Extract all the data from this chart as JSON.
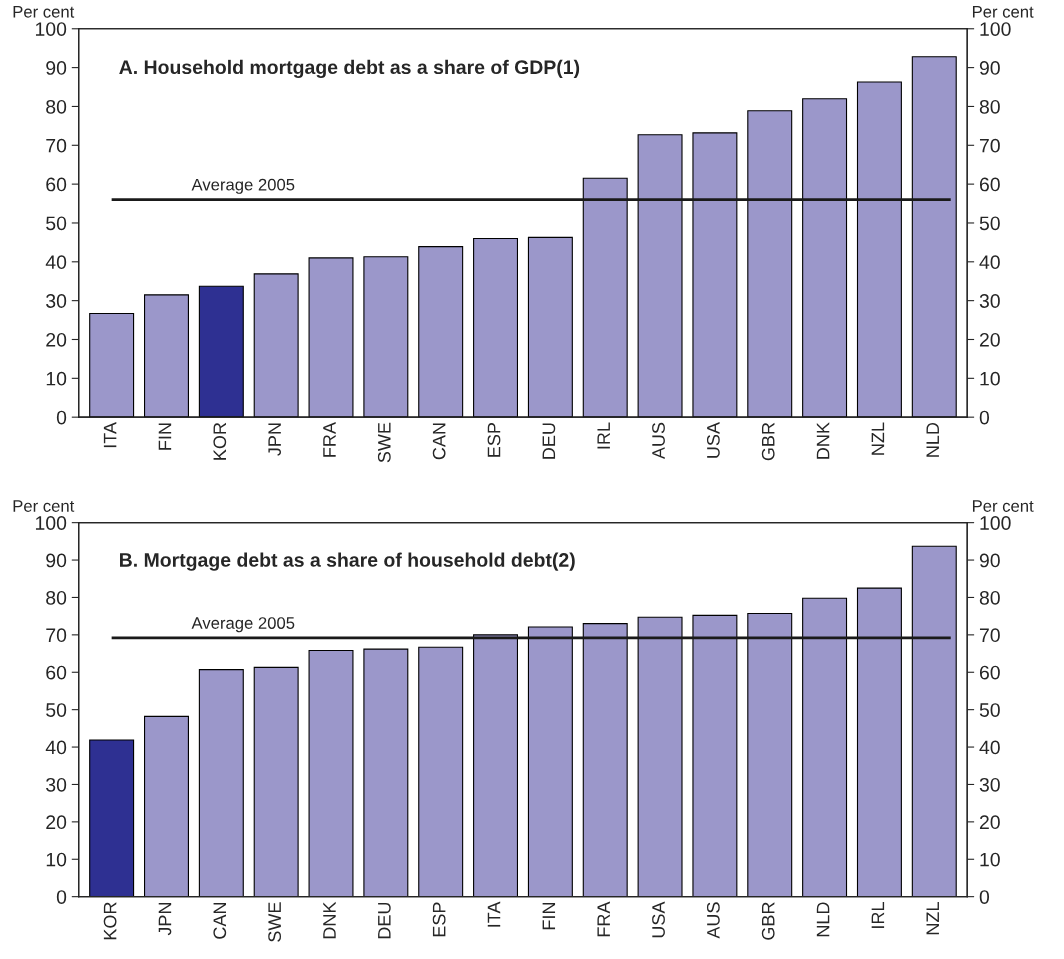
{
  "chart_data": [
    {
      "type": "bar",
      "title": "A. Household mortgage debt as a share of GDP(1)",
      "ylabel": "Per cent",
      "y2label": "Per cent",
      "categories": [
        "ITA",
        "FIN",
        "KOR",
        "JPN",
        "FRA",
        "SWE",
        "CAN",
        "ESP",
        "DEU",
        "IRL",
        "AUS",
        "USA",
        "GBR",
        "DNK",
        "NZL",
        "NLD"
      ],
      "values": [
        26.7,
        31.5,
        33.7,
        36.9,
        41.0,
        41.3,
        43.9,
        46.0,
        46.3,
        61.5,
        72.7,
        73.2,
        78.9,
        82.0,
        86.3,
        92.8
      ],
      "colors": [
        "#9b97ca",
        "#9b97ca",
        "#2e3092",
        "#9b97ca",
        "#9b97ca",
        "#9b97ca",
        "#9b97ca",
        "#9b97ca",
        "#9b97ca",
        "#9b97ca",
        "#9b97ca",
        "#9b97ca",
        "#9b97ca",
        "#9b97ca",
        "#9b97ca",
        "#9b97ca"
      ],
      "ylim": [
        0,
        100
      ],
      "yticks": [
        0,
        10,
        20,
        30,
        40,
        50,
        60,
        70,
        80,
        90,
        100
      ],
      "y2lim": [
        0,
        100
      ],
      "y2ticks": [
        0,
        10,
        20,
        30,
        40,
        50,
        60,
        70,
        80,
        90,
        100
      ],
      "ref_lines": [
        {
          "axis": "y",
          "value": 56,
          "label": "Average 2005",
          "color": "#1a1a1a"
        }
      ],
      "grid": false,
      "legend": false
    },
    {
      "type": "bar",
      "title": "B. Mortgage debt as a share of household debt(2)",
      "ylabel": "Per cent",
      "y2label": "Per cent",
      "categories": [
        "KOR",
        "JPN",
        "CAN",
        "SWE",
        "DNK",
        "DEU",
        "ESP",
        "ITA",
        "FIN",
        "FRA",
        "USA",
        "AUS",
        "GBR",
        "NLD",
        "IRL",
        "NZL"
      ],
      "values": [
        41.9,
        48.2,
        60.7,
        61.3,
        65.8,
        66.2,
        66.7,
        70.0,
        72.1,
        73.0,
        74.7,
        75.2,
        75.7,
        79.8,
        82.5,
        93.7
      ],
      "colors": [
        "#2e3092",
        "#9b97ca",
        "#9b97ca",
        "#9b97ca",
        "#9b97ca",
        "#9b97ca",
        "#9b97ca",
        "#9b97ca",
        "#9b97ca",
        "#9b97ca",
        "#9b97ca",
        "#9b97ca",
        "#9b97ca",
        "#9b97ca",
        "#9b97ca",
        "#9b97ca"
      ],
      "ylim": [
        0,
        100
      ],
      "yticks": [
        0,
        10,
        20,
        30,
        40,
        50,
        60,
        70,
        80,
        90,
        100
      ],
      "y2lim": [
        0,
        100
      ],
      "y2ticks": [
        0,
        10,
        20,
        30,
        40,
        50,
        60,
        70,
        80,
        90,
        100
      ],
      "ref_lines": [
        {
          "axis": "y",
          "value": 69.2,
          "label": "Average 2005",
          "color": "#1a1a1a"
        }
      ],
      "grid": false,
      "legend": false
    }
  ]
}
